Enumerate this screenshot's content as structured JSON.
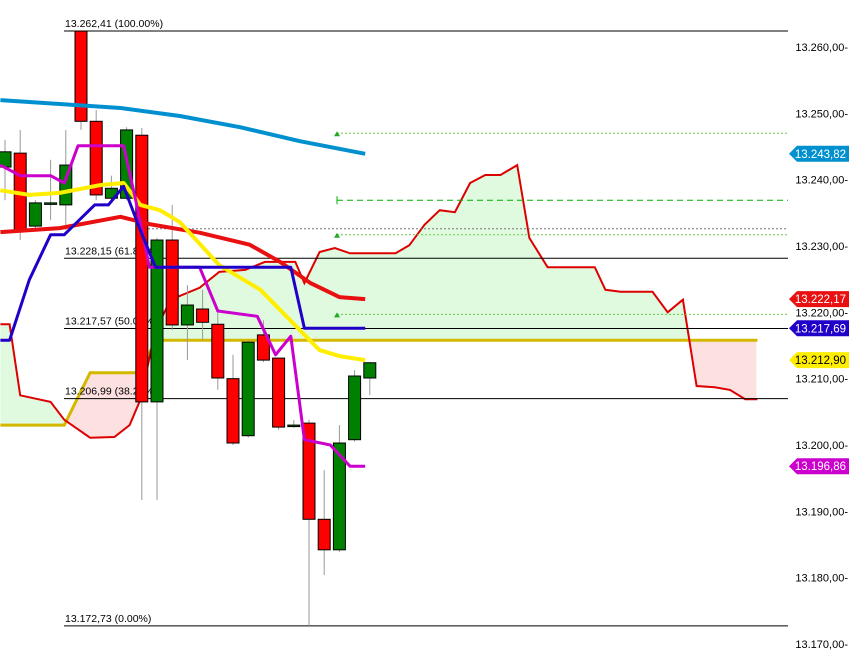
{
  "chart_data": {
    "type": "candlestick",
    "y_axis": {
      "range": [
        13167,
        13265
      ],
      "ticks": [
        13260,
        13250,
        13240,
        13230,
        13220,
        13210,
        13200,
        13190,
        13180,
        13170
      ],
      "tick_labels": [
        "13.260,00-",
        "13.250,00-",
        "13.240,00-",
        "13.230,00-",
        "13.220,00-",
        "13.210,00-",
        "13.200,00-",
        "13.190,00-",
        "13.180,00-",
        "13.170,00-"
      ]
    },
    "x_range": [
      -0.35,
      50.2
    ],
    "candles": [
      {
        "i": 0,
        "o": 13241.9,
        "h": 13246.0,
        "l": 13236.9,
        "c": 13244.2
      },
      {
        "i": 1,
        "o": 13244.0,
        "h": 13247.5,
        "l": 13230.9,
        "c": 13232.4
      },
      {
        "i": 2,
        "o": 13233.0,
        "h": 13236.9,
        "l": 13232.7,
        "c": 13236.5
      },
      {
        "i": 3,
        "o": 13236.5,
        "h": 13243.0,
        "l": 13233.9,
        "c": 13236.5
      },
      {
        "i": 4,
        "o": 13236.2,
        "h": 13247.5,
        "l": 13232.4,
        "c": 13242.2
      },
      {
        "i": 5,
        "o": 13262.4,
        "h": 13262.4,
        "l": 13247.5,
        "c": 13248.8
      },
      {
        "i": 6,
        "o": 13248.8,
        "h": 13250.5,
        "l": 13236.9,
        "c": 13237.7
      },
      {
        "i": 7,
        "o": 13237.2,
        "h": 13240.6,
        "l": 13236.9,
        "c": 13238.7
      },
      {
        "i": 8,
        "o": 13237.2,
        "h": 13247.9,
        "l": 13236.9,
        "c": 13247.5
      },
      {
        "i": 9,
        "o": 13246.7,
        "h": 13247.8,
        "l": 13191.7,
        "c": 13206.5
      },
      {
        "i": 10,
        "o": 13206.5,
        "h": 13231.2,
        "l": 13191.7,
        "c": 13230.9
      },
      {
        "i": 11,
        "o": 13230.9,
        "h": 13236.2,
        "l": 13217.3,
        "c": 13218.1
      },
      {
        "i": 12,
        "o": 13218.1,
        "h": 13224.1,
        "l": 13212.8,
        "c": 13221.1
      },
      {
        "i": 13,
        "o": 13220.5,
        "h": 13223.4,
        "l": 13215.8,
        "c": 13218.5
      },
      {
        "i": 14,
        "o": 13218.2,
        "h": 13220.3,
        "l": 13208.3,
        "c": 13210.1
      },
      {
        "i": 15,
        "o": 13210.0,
        "h": 13213.6,
        "l": 13200.0,
        "c": 13200.3
      },
      {
        "i": 16,
        "o": 13201.4,
        "h": 13215.8,
        "l": 13201.1,
        "c": 13215.5
      },
      {
        "i": 17,
        "o": 13216.6,
        "h": 13218.8,
        "l": 13212.5,
        "c": 13212.8
      },
      {
        "i": 18,
        "o": 13213.1,
        "h": 13212.8,
        "l": 13202.3,
        "c": 13202.7
      },
      {
        "i": 19,
        "o": 13202.9,
        "h": 13203.8,
        "l": 13202.6,
        "c": 13203.0
      },
      {
        "i": 20,
        "o": 13203.3,
        "h": 13203.8,
        "l": 13172.73,
        "c": 13188.8
      },
      {
        "i": 21,
        "o": 13188.8,
        "h": 13196.2,
        "l": 13180.4,
        "c": 13184.2
      },
      {
        "i": 22,
        "o": 13184.2,
        "h": 13203.0,
        "l": 13183.9,
        "c": 13200.3
      },
      {
        "i": 23,
        "o": 13200.8,
        "h": 13211.3,
        "l": 13200.5,
        "c": 13210.4
      },
      {
        "i": 24,
        "o": 13210.1,
        "h": 13212.5,
        "l": 13207.5,
        "c": 13212.4
      }
    ],
    "colors": {
      "up": "#008000",
      "down": "#ff0000"
    },
    "fib_levels": [
      {
        "price": 13262.41,
        "label": "13.262,41 (100.00%)"
      },
      {
        "price": 13228.15,
        "label": "13.228,15 (61.80%)"
      },
      {
        "price": 13217.57,
        "label": "13.217,57 (50.00%)"
      },
      {
        "price": 13206.99,
        "label": "13.206,99 (38.20%)"
      },
      {
        "price": 13172.73,
        "label": "13.172,73 (0.00%)"
      }
    ],
    "levels": [
      {
        "price": 13247.0,
        "style": "dotted",
        "color": "#66cc44",
        "marker": "triangle-up"
      },
      {
        "price": 13236.9,
        "style": "dashed",
        "color": "#00b000",
        "marker": "bracket"
      },
      {
        "price": 13232.6,
        "style": "dotted",
        "color": "#777777",
        "marker": "none"
      },
      {
        "price": 13231.7,
        "style": "dotted",
        "color": "#66cc44",
        "marker": "triangle-up"
      },
      {
        "price": 13219.7,
        "style": "dotted",
        "color": "#66cc44",
        "marker": "triangle-up"
      }
    ],
    "series": [
      {
        "color": "#0090d0",
        "width": 4,
        "tag": "13.243,82",
        "tag_text": "#ffffff",
        "points": [
          [
            -0.3,
            13252.0
          ],
          [
            3.6,
            13251.4
          ],
          [
            7.6,
            13250.8
          ],
          [
            11.5,
            13249.6
          ],
          [
            15.5,
            13247.9
          ],
          [
            19.4,
            13245.8
          ],
          [
            23.7,
            13243.9
          ]
        ]
      },
      {
        "color": "#e81010",
        "width": 4,
        "tag": "13.222,17",
        "tag_text": "#ffffff",
        "points": [
          [
            -0.3,
            13232.1
          ],
          [
            3.6,
            13232.7
          ],
          [
            7.6,
            13234.4
          ],
          [
            9.5,
            13233.3
          ],
          [
            12.8,
            13232.0
          ],
          [
            16.1,
            13230.2
          ],
          [
            18.1,
            13227.6
          ],
          [
            20.1,
            13224.4
          ],
          [
            22.0,
            13222.3
          ],
          [
            23.7,
            13222.0
          ]
        ]
      },
      {
        "color": "#ffee00",
        "width": 4,
        "tag": "13.212,90",
        "tag_text": "#000000",
        "points": [
          [
            -0.3,
            13238.4
          ],
          [
            1.6,
            13237.7
          ],
          [
            3.6,
            13238.0
          ],
          [
            6.3,
            13239.2
          ],
          [
            7.8,
            13239.5
          ],
          [
            8.9,
            13236.2
          ],
          [
            10.2,
            13235.4
          ],
          [
            11.5,
            13233.6
          ],
          [
            14.1,
            13227.1
          ],
          [
            16.8,
            13223.4
          ],
          [
            19.4,
            13217.3
          ],
          [
            20.7,
            13214.3
          ],
          [
            22.0,
            13213.4
          ],
          [
            23.7,
            13212.8
          ]
        ]
      },
      {
        "color": "#cc00cc",
        "width": 3,
        "tag": "13.196,86",
        "tag_text": "#ffffff",
        "points": [
          [
            -0.3,
            13242.2
          ],
          [
            1.0,
            13240.6
          ],
          [
            3.0,
            13240.6
          ],
          [
            3.9,
            13239.5
          ],
          [
            4.8,
            13245.1
          ],
          [
            7.8,
            13245.1
          ],
          [
            8.6,
            13236.9
          ],
          [
            9.5,
            13226.8
          ],
          [
            12.8,
            13226.8
          ],
          [
            14.0,
            13220.2
          ],
          [
            16.6,
            13219.4
          ],
          [
            17.8,
            13213.6
          ],
          [
            18.8,
            13216.4
          ],
          [
            19.7,
            13200.8
          ],
          [
            21.4,
            13200.0
          ],
          [
            22.7,
            13196.8
          ],
          [
            23.7,
            13196.8
          ]
        ]
      },
      {
        "color": "#2000c8",
        "width": 3,
        "tag": "13.217,69",
        "tag_text": "#ffffff",
        "points": [
          [
            -0.3,
            13215.8
          ],
          [
            0.3,
            13215.8
          ],
          [
            1.6,
            13224.9
          ],
          [
            3.0,
            13231.7
          ],
          [
            3.9,
            13231.7
          ],
          [
            5.9,
            13236.2
          ],
          [
            6.8,
            13236.2
          ],
          [
            7.8,
            13239.0
          ],
          [
            8.9,
            13232.4
          ],
          [
            9.9,
            13226.8
          ],
          [
            18.8,
            13226.8
          ],
          [
            19.7,
            13217.6
          ],
          [
            23.7,
            13217.6
          ]
        ]
      }
    ],
    "cloud": {
      "span_a": {
        "color": "#dd0000",
        "points": [
          [
            -0.3,
            13218.2
          ],
          [
            0.3,
            13218.2
          ],
          [
            1.0,
            13207.5
          ],
          [
            3.0,
            13206.5
          ],
          [
            3.9,
            13203.8
          ],
          [
            5.6,
            13201.1
          ],
          [
            7.2,
            13201.2
          ],
          [
            8.2,
            13203.0
          ],
          [
            8.9,
            13206.8
          ],
          [
            9.9,
            13217.3
          ],
          [
            10.9,
            13221.9
          ],
          [
            12.8,
            13223.7
          ],
          [
            14.1,
            13226.1
          ],
          [
            15.8,
            13226.4
          ],
          [
            17.1,
            13227.6
          ],
          [
            19.1,
            13227.6
          ],
          [
            19.7,
            13224.4
          ],
          [
            20.7,
            13229.1
          ],
          [
            21.7,
            13229.7
          ],
          [
            22.7,
            13228.9
          ],
          [
            25.7,
            13228.9
          ],
          [
            26.6,
            13230.1
          ],
          [
            27.6,
            13233.2
          ],
          [
            28.6,
            13235.4
          ],
          [
            29.6,
            13235.1
          ],
          [
            30.6,
            13239.5
          ],
          [
            31.6,
            13240.7
          ],
          [
            32.6,
            13240.7
          ],
          [
            33.7,
            13242.2
          ],
          [
            34.5,
            13231.2
          ],
          [
            35.7,
            13226.8
          ],
          [
            38.8,
            13226.8
          ],
          [
            39.5,
            13223.4
          ],
          [
            40.5,
            13223.1
          ],
          [
            42.6,
            13223.1
          ],
          [
            43.6,
            13220.0
          ],
          [
            44.6,
            13221.9
          ],
          [
            45.5,
            13208.9
          ],
          [
            46.7,
            13208.7
          ],
          [
            47.7,
            13208.3
          ],
          [
            48.7,
            13206.9
          ],
          [
            49.5,
            13206.9
          ]
        ]
      },
      "span_b": {
        "color": "#d4b800",
        "points": [
          [
            -0.3,
            13203.0
          ],
          [
            3.9,
            13203.0
          ],
          [
            5.6,
            13210.9
          ],
          [
            8.9,
            13210.9
          ],
          [
            9.9,
            13215.8
          ],
          [
            49.5,
            13215.8
          ]
        ]
      },
      "bull_fill": "#e0fae0",
      "bear_fill": "#fde0e0"
    }
  }
}
